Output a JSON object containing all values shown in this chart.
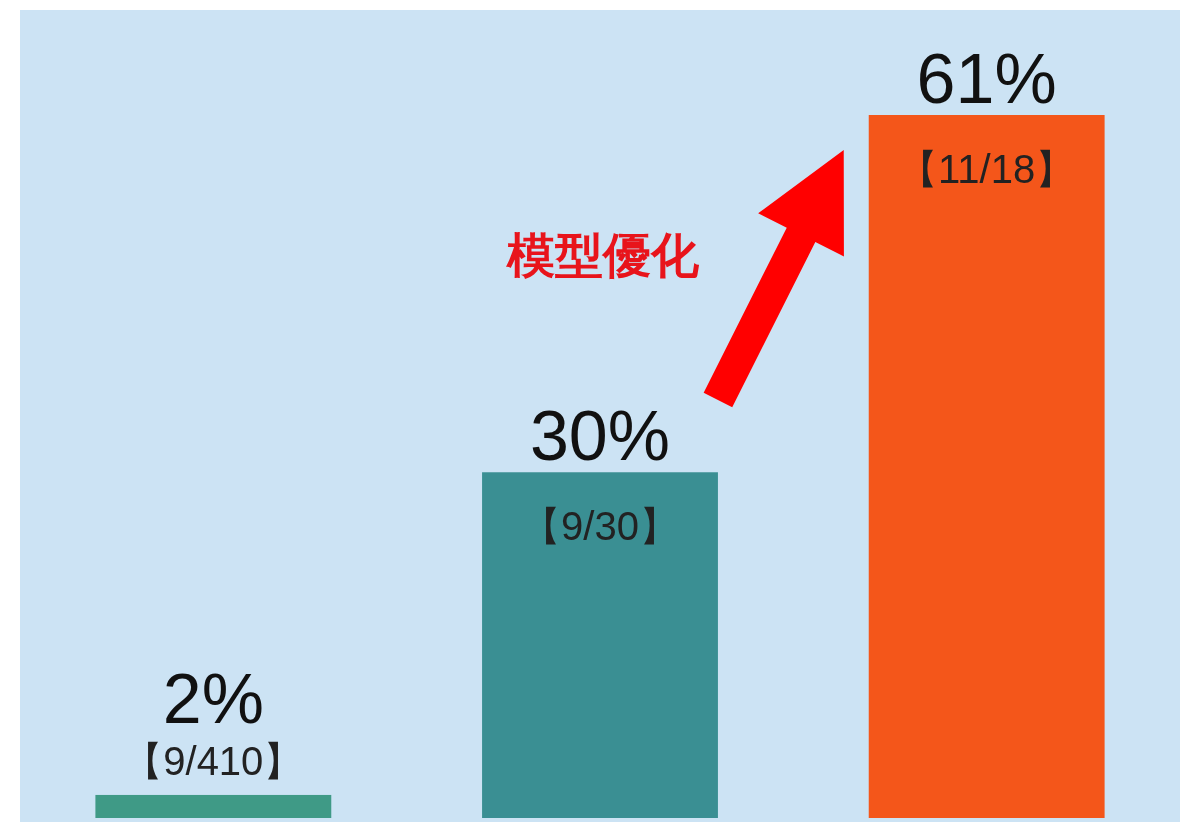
{
  "chart_data": {
    "type": "bar",
    "categories": [
      null,
      null,
      null
    ],
    "values": [
      2,
      30,
      61
    ],
    "colors": [
      "#3f9a86",
      "#3a8f93",
      "#f4561a"
    ],
    "value_labels": [
      "2%",
      "30%",
      "61%"
    ],
    "annotations": [
      "【9/410】",
      "【9/30】",
      "【11/18】",
      "模型優化"
    ]
  }
}
